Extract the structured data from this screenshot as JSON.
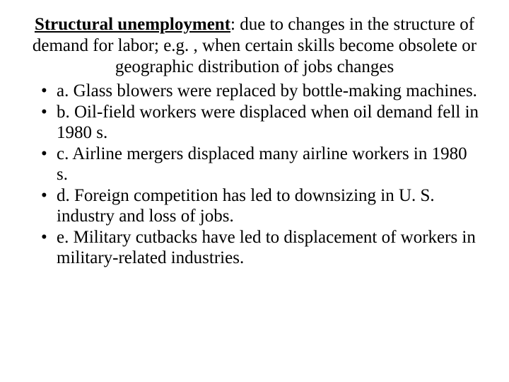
{
  "colors": {
    "background": "#ffffff",
    "text": "#000000"
  },
  "typography": {
    "font_family": "Times New Roman",
    "heading_fontsize_pt": 19,
    "bullet_fontsize_pt": 19,
    "line_height": 1.18
  },
  "heading": {
    "term": "Structural unemployment",
    "definition_tail": ":  due to changes in the structure of demand for labor; e.g. , when certain skills become obsolete or geographic distribution of jobs changes"
  },
  "bullets": [
    "a.   Glass blowers were replaced by bottle-making machines.",
    "b.   Oil-field workers were displaced when oil demand fell in 1980 s.",
    "c.   Airline mergers displaced many airline workers in 1980 s.",
    "d.   Foreign competition has led to downsizing in U. S. industry and loss of jobs.",
    "e.   Military cutbacks have led to displacement of workers in military-related industries."
  ]
}
